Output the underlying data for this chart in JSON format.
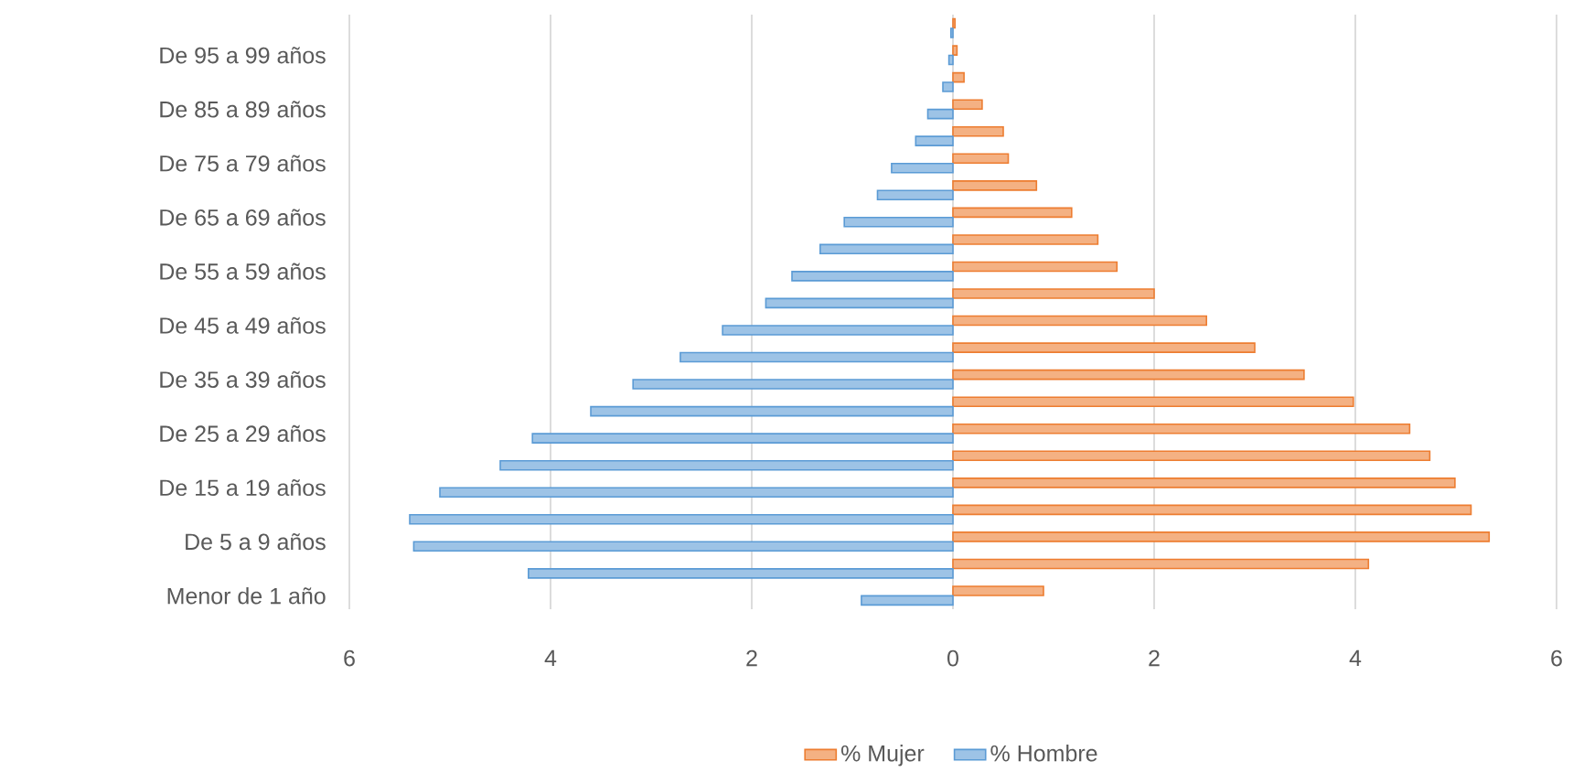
{
  "chart_data": {
    "type": "bar",
    "orientation": "horizontal",
    "categories": [
      null,
      "De 95 a 99 años",
      null,
      "De 85 a 89 años",
      null,
      "De 75 a 79 años",
      null,
      "De 65 a 69 años",
      null,
      "De 55 a 59 años",
      null,
      "De 45 a 49 años",
      null,
      "De 35 a 39 años",
      null,
      "De 25 a 29 años",
      null,
      "De 15 a 19 años",
      null,
      "De 5 a 9 años",
      null,
      "Menor de 1 año"
    ],
    "series": [
      {
        "name": "% Mujer",
        "color": "#ed7d31",
        "values": [
          0.02,
          0.04,
          0.11,
          0.29,
          0.5,
          0.55,
          0.83,
          1.18,
          1.44,
          1.63,
          2.0,
          2.52,
          3.0,
          3.49,
          3.98,
          4.54,
          4.74,
          4.99,
          5.15,
          5.33,
          4.13,
          0.9
        ]
      },
      {
        "name": "% Hombre",
        "color": "#5b9bd5",
        "values": [
          -0.02,
          -0.04,
          -0.1,
          -0.25,
          -0.37,
          -0.61,
          -0.75,
          -1.08,
          -1.32,
          -1.6,
          -1.86,
          -2.29,
          -2.71,
          -3.18,
          -3.6,
          -4.18,
          -4.5,
          -5.1,
          -5.4,
          -5.36,
          -4.22,
          -0.91
        ]
      }
    ],
    "xlim": [
      -6,
      6
    ],
    "xticks": [
      {
        "value": -6,
        "label": "6"
      },
      {
        "value": -4,
        "label": "4"
      },
      {
        "value": -2,
        "label": "2"
      },
      0,
      2,
      4,
      6
    ],
    "grid": "x",
    "legend": "bottom"
  }
}
